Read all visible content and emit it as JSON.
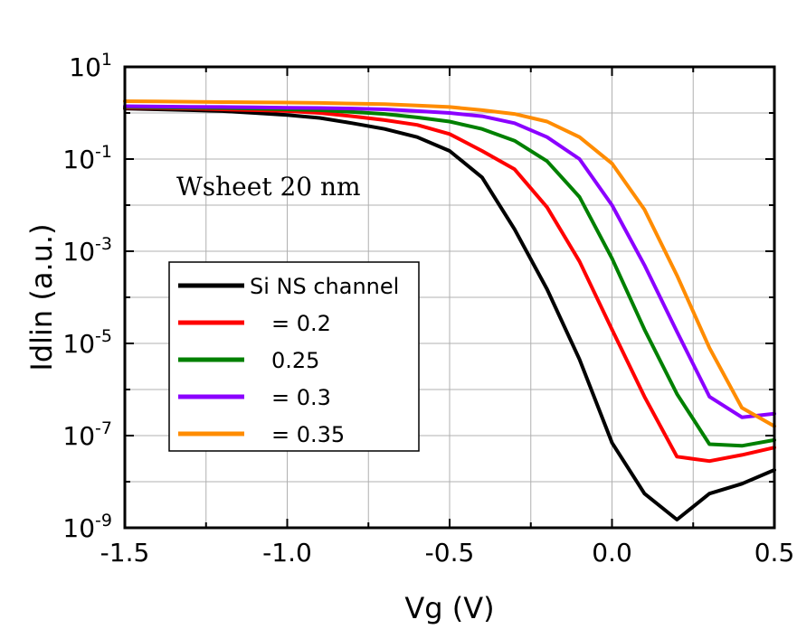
{
  "chart_data": {
    "type": "line",
    "xlabel": "Vg (V)",
    "ylabel": "Idlin (a.u.)",
    "xlim": [
      -1.5,
      0.5
    ],
    "ylim_log10": [
      -9,
      1
    ],
    "yscale": "log",
    "grid": true,
    "x_ticks": [
      "-1.5",
      "-1.0",
      "-0.5",
      "0.0",
      "0.5"
    ],
    "y_ticks": [
      {
        "base": "10",
        "exp": "1"
      },
      {
        "base": "10",
        "exp": "-1"
      },
      {
        "base": "10",
        "exp": "-3"
      },
      {
        "base": "10",
        "exp": "-5"
      },
      {
        "base": "10",
        "exp": "-7"
      },
      {
        "base": "10",
        "exp": "-9"
      }
    ],
    "annotation": "Wsheet 20 nm",
    "legend_position": "center-left",
    "series": [
      {
        "name": "Si NS channel",
        "color": "#000000",
        "x": [
          -1.5,
          -1.4,
          -1.3,
          -1.2,
          -1.1,
          -1.0,
          -0.9,
          -0.8,
          -0.7,
          -0.6,
          -0.5,
          -0.4,
          -0.3,
          -0.2,
          -0.1,
          0.0,
          0.1,
          0.2,
          0.3,
          0.4,
          0.5
        ],
        "y": [
          1.25,
          1.2,
          1.15,
          1.1,
          1.0,
          0.9,
          0.78,
          0.6,
          0.45,
          0.3,
          0.15,
          0.04,
          0.003,
          0.00015,
          4.5e-06,
          7e-08,
          5.5e-09,
          1.5e-09,
          5.5e-09,
          9e-09,
          1.8e-08
        ]
      },
      {
        "name": "= 0.2",
        "color": "#ff0000",
        "x": [
          -1.5,
          -1.4,
          -1.3,
          -1.2,
          -1.1,
          -1.0,
          -0.9,
          -0.8,
          -0.7,
          -0.6,
          -0.5,
          -0.4,
          -0.3,
          -0.2,
          -0.1,
          0.0,
          0.1,
          0.2,
          0.3,
          0.4,
          0.5
        ],
        "y": [
          1.3,
          1.28,
          1.25,
          1.2,
          1.15,
          1.1,
          1.0,
          0.85,
          0.7,
          0.55,
          0.35,
          0.15,
          0.06,
          0.009,
          0.0006,
          2e-05,
          7e-07,
          3.5e-08,
          2.8e-08,
          3.8e-08,
          5.5e-08
        ]
      },
      {
        "name": "0.25",
        "color": "#008000",
        "x": [
          -1.5,
          -1.4,
          -1.3,
          -1.2,
          -1.1,
          -1.0,
          -0.9,
          -0.8,
          -0.7,
          -0.6,
          -0.5,
          -0.4,
          -0.3,
          -0.2,
          -0.1,
          0.0,
          0.1,
          0.2,
          0.3,
          0.4,
          0.5
        ],
        "y": [
          1.35,
          1.33,
          1.3,
          1.28,
          1.25,
          1.2,
          1.15,
          1.05,
          0.95,
          0.8,
          0.65,
          0.45,
          0.25,
          0.09,
          0.015,
          0.0007,
          2e-05,
          8e-07,
          6.5e-08,
          6e-08,
          8e-08
        ]
      },
      {
        "name": "= 0.3",
        "color": "#8b00ff",
        "x": [
          -1.5,
          -1.4,
          -1.3,
          -1.2,
          -1.1,
          -1.0,
          -0.9,
          -0.8,
          -0.7,
          -0.6,
          -0.5,
          -0.4,
          -0.3,
          -0.2,
          -0.1,
          0.0,
          0.1,
          0.2,
          0.3,
          0.4,
          0.5
        ],
        "y": [
          1.4,
          1.38,
          1.36,
          1.35,
          1.33,
          1.3,
          1.28,
          1.25,
          1.2,
          1.1,
          1.0,
          0.85,
          0.6,
          0.3,
          0.1,
          0.01,
          0.0005,
          1.8e-05,
          7e-07,
          2.5e-07,
          3e-07
        ]
      },
      {
        "name": "= 0.35",
        "color": "#ff8c00",
        "x": [
          -1.5,
          -1.4,
          -1.3,
          -1.2,
          -1.1,
          -1.0,
          -0.9,
          -0.8,
          -0.7,
          -0.6,
          -0.5,
          -0.4,
          -0.3,
          -0.2,
          -0.1,
          0.0,
          0.1,
          0.2,
          0.3,
          0.4,
          0.5
        ],
        "y": [
          1.8,
          1.78,
          1.75,
          1.72,
          1.7,
          1.68,
          1.65,
          1.6,
          1.55,
          1.45,
          1.35,
          1.15,
          0.95,
          0.65,
          0.3,
          0.08,
          0.008,
          0.0003,
          8e-06,
          4e-07,
          1.6e-07
        ]
      }
    ]
  }
}
